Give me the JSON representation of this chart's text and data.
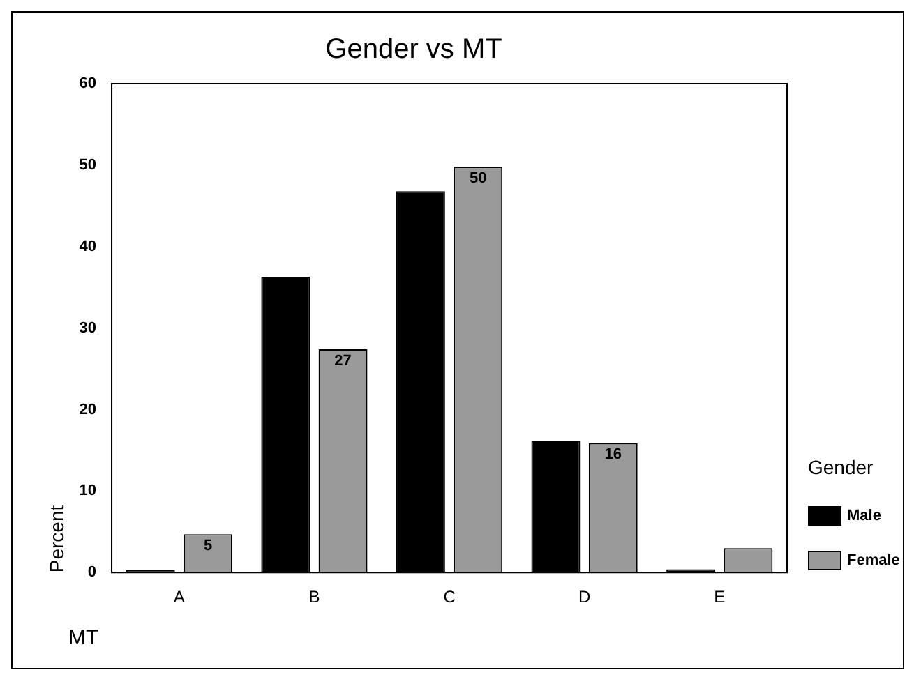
{
  "chart_data": {
    "type": "bar",
    "title": "Gender vs MT",
    "xlabel": "MT",
    "ylabel": "Percent",
    "legend_title": "Gender",
    "legend": "right",
    "categories": [
      "A",
      "B",
      "C",
      "D",
      "E"
    ],
    "series": [
      {
        "name": "Male",
        "color": "#000000",
        "values": [
          0.3,
          36.3,
          46.8,
          16.2,
          0.4
        ]
      },
      {
        "name": "Female",
        "color": "#9a9a9a",
        "values": [
          4.7,
          27.4,
          49.8,
          15.9,
          3.0
        ],
        "value_labels": [
          "5",
          "27",
          "50",
          "16",
          null
        ]
      }
    ],
    "ylim": [
      0,
      60
    ],
    "yticks": [
      0,
      10,
      20,
      30,
      40,
      50,
      60
    ],
    "grid": false
  }
}
